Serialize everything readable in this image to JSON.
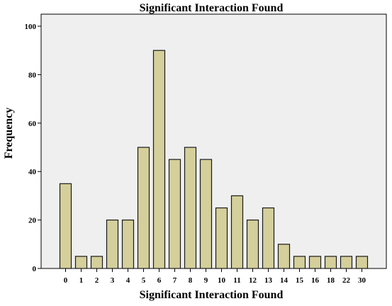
{
  "chart_data": {
    "type": "bar",
    "title": "Significant Interaction Found",
    "xlabel": "Significant Interaction Found",
    "ylabel": "Frequency",
    "categories": [
      "0",
      "1",
      "2",
      "3",
      "4",
      "5",
      "6",
      "7",
      "8",
      "9",
      "10",
      "11",
      "12",
      "13",
      "14",
      "15",
      "16",
      "18",
      "22",
      "30"
    ],
    "values": [
      35,
      5,
      5,
      20,
      20,
      50,
      90,
      45,
      50,
      45,
      25,
      30,
      20,
      25,
      10,
      5,
      5,
      5,
      5,
      5
    ],
    "ylim": [
      0,
      100
    ],
    "yticks": [
      0,
      20,
      40,
      60,
      80,
      100
    ],
    "grid": false,
    "legend": "none",
    "colors": {
      "bar_fill": "#d4cf9b",
      "bar_stroke": "#1a1a1a",
      "plot_background": "#efefef",
      "frame": "#000000"
    }
  }
}
